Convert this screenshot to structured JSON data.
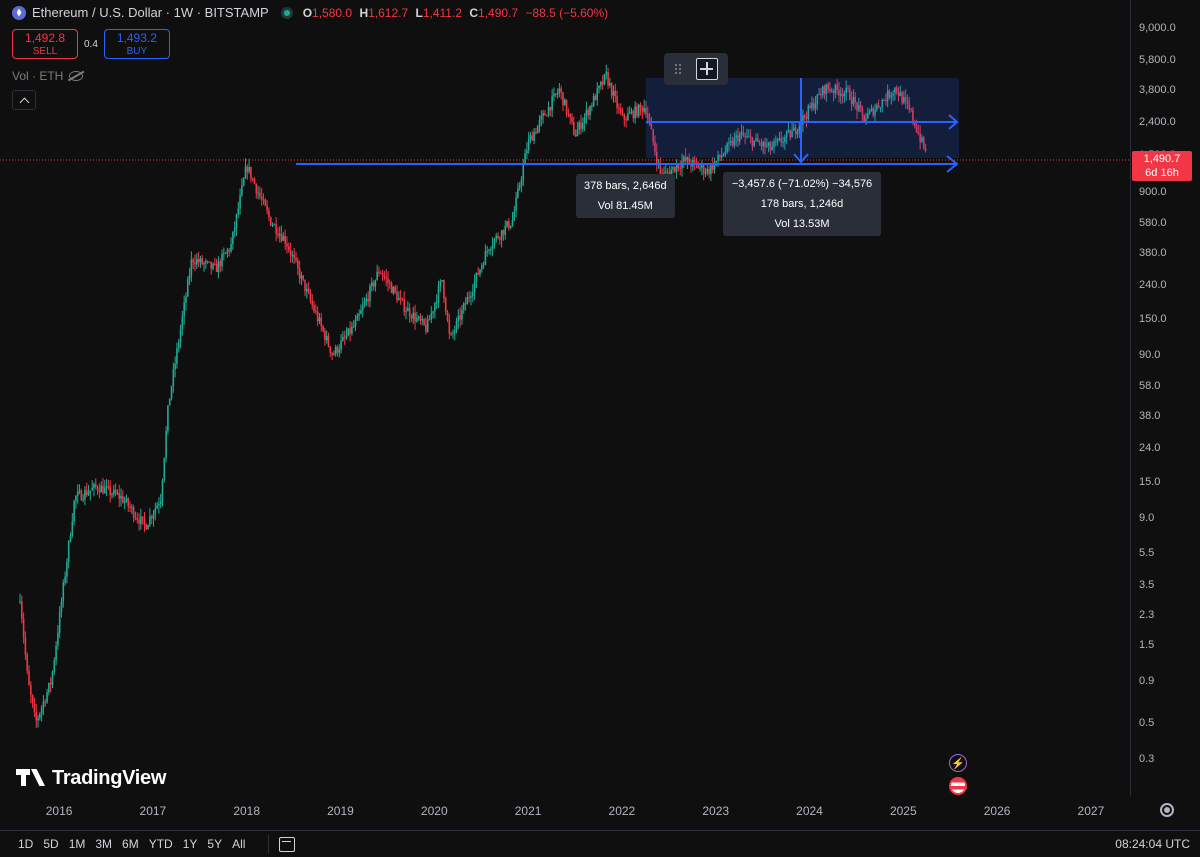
{
  "header": {
    "symbol_title": "Ethereum / U.S. Dollar · 1W · BITSTAMP",
    "ohlc": {
      "o_key": "O",
      "o": "1,580.0",
      "h_key": "H",
      "h": "1,612.7",
      "l_key": "L",
      "l": "1,411.2",
      "c_key": "C",
      "c": "1,490.7",
      "change": "−88.5 (−5.60%)"
    }
  },
  "trade": {
    "sell_price": "1,492.8",
    "sell_label": "SELL",
    "spread": "0.4",
    "buy_price": "1,493.2",
    "buy_label": "BUY"
  },
  "volume_legend": "Vol · ETH",
  "measure_tooltips": {
    "first": {
      "line1": "378 bars, 2,646d",
      "line2": "Vol 81.45M"
    },
    "second": {
      "line1": "−3,457.6 (−71.02%) −34,576",
      "line2": "178 bars, 1,246d",
      "line3": "Vol 13.53M"
    }
  },
  "price_axis": {
    "labels": [
      "9,000.0",
      "5,800.0",
      "3,800.0",
      "2,400.0",
      "1,500.0",
      "900.0",
      "580.0",
      "380.0",
      "240.0",
      "150.0",
      "90.0",
      "58.0",
      "38.0",
      "24.0",
      "15.0",
      "9.0",
      "5.5",
      "3.5",
      "2.3",
      "1.5",
      "0.9",
      "0.5",
      "0.3"
    ],
    "current_price": "1,490.7",
    "countdown": "6d 16h"
  },
  "time_axis": {
    "labels": [
      "2016",
      "2017",
      "2018",
      "2019",
      "2020",
      "2021",
      "2022",
      "2023",
      "2024",
      "2025",
      "2026",
      "2027"
    ]
  },
  "range_buttons": [
    "1D",
    "5D",
    "1M",
    "3M",
    "6M",
    "YTD",
    "1Y",
    "5Y",
    "All"
  ],
  "clock": "08:24:04 UTC",
  "brand": "TradingView",
  "colors": {
    "up": "#22ab94",
    "down": "#f23645",
    "drawing": "#2962ff",
    "background": "#0f0f0f"
  },
  "chart_data": {
    "type": "candlestick",
    "scale": "log",
    "ylim": [
      0.25,
      12000
    ],
    "x_range": [
      "2015-08",
      "2027-06"
    ],
    "grid": false,
    "series": [
      {
        "points": [
          [
            "2015-08",
            3.0
          ],
          [
            "2015-09",
            0.9
          ],
          [
            "2015-10",
            0.5
          ],
          [
            "2015-12",
            0.9
          ],
          [
            "2016-02",
            5.0
          ],
          [
            "2016-03",
            12.0
          ],
          [
            "2016-06",
            14.0
          ],
          [
            "2016-09",
            12.0
          ],
          [
            "2016-12",
            8.0
          ],
          [
            "2017-02",
            12.0
          ],
          [
            "2017-03",
            45.0
          ],
          [
            "2017-06",
            350.0
          ],
          [
            "2017-09",
            300.0
          ],
          [
            "2017-11",
            420.0
          ],
          [
            "2018-01",
            1300.0
          ],
          [
            "2018-04",
            600.0
          ],
          [
            "2018-06",
            450.0
          ],
          [
            "2018-09",
            200.0
          ],
          [
            "2018-12",
            90.0
          ],
          [
            "2019-03",
            140.0
          ],
          [
            "2019-06",
            300.0
          ],
          [
            "2019-09",
            180.0
          ],
          [
            "2019-12",
            130.0
          ],
          [
            "2020-02",
            260.0
          ],
          [
            "2020-03",
            110.0
          ],
          [
            "2020-06",
            240.0
          ],
          [
            "2020-08",
            420.0
          ],
          [
            "2020-11",
            600.0
          ],
          [
            "2021-01",
            1800.0
          ],
          [
            "2021-05",
            3800.0
          ],
          [
            "2021-07",
            2000.0
          ],
          [
            "2021-11",
            4600.0
          ],
          [
            "2022-01",
            2500.0
          ],
          [
            "2022-04",
            3000.0
          ],
          [
            "2022-06",
            1100.0
          ],
          [
            "2022-09",
            1400.0
          ],
          [
            "2022-12",
            1200.0
          ],
          [
            "2023-04",
            2000.0
          ],
          [
            "2023-08",
            1650.0
          ],
          [
            "2023-11",
            2100.0
          ],
          [
            "2024-03",
            3900.0
          ],
          [
            "2024-06",
            3600.0
          ],
          [
            "2024-08",
            2500.0
          ],
          [
            "2024-12",
            3900.0
          ],
          [
            "2025-02",
            2700.0
          ],
          [
            "2025-04",
            1490.7
          ]
        ]
      }
    ],
    "tick_labels_y": [
      "9,000.0",
      "5,800.0",
      "3,800.0",
      "2,400.0",
      "1,500.0",
      "900.0",
      "580.0",
      "380.0",
      "240.0",
      "150.0",
      "90.0",
      "58.0",
      "38.0",
      "24.0",
      "15.0",
      "9.0",
      "5.5",
      "3.5",
      "2.3",
      "1.5",
      "0.9",
      "0.5",
      "0.3"
    ],
    "tick_labels_x": [
      "2016",
      "2017",
      "2018",
      "2019",
      "2020",
      "2021",
      "2022",
      "2023",
      "2024",
      "2025",
      "2026",
      "2027"
    ]
  }
}
